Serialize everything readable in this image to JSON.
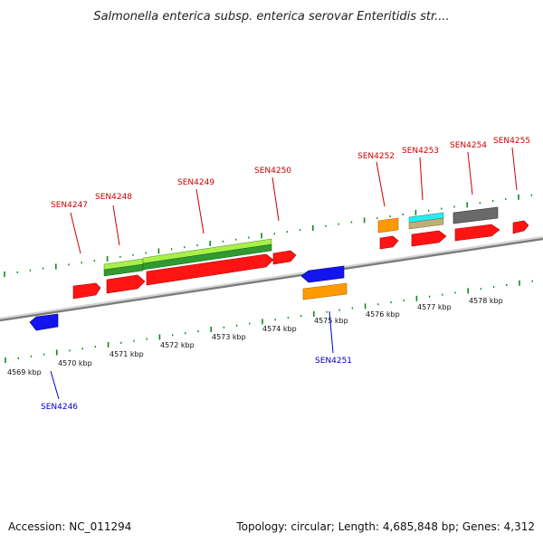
{
  "title": "Salmonella enterica subsp. enterica serovar Enteritidis str....",
  "footer": {
    "accession": "Accession: NC_011294",
    "summary": "Topology: circular; Length: 4,685,848 bp; Genes: 4,312"
  },
  "colors": {
    "backbone": "#8c8c8c",
    "ticks": "#0f8a1e",
    "top_strand_label": "#cc0000",
    "bottom_strand_label": "#0000cc",
    "cds_red": "#ff1414",
    "cds_blue": "#1414ee",
    "orange": "#ff9900",
    "cyan": "#22eeee",
    "tan": "#bfae7a",
    "lime": "#a8f04a",
    "dark_green": "#2f9a2f",
    "gray": "#6a6a6a"
  },
  "scale_labels": [
    {
      "text": "4569 kbp"
    },
    {
      "text": "4570 kbp"
    },
    {
      "text": "4571 kbp"
    },
    {
      "text": "4572 kbp"
    },
    {
      "text": "4573 kbp"
    },
    {
      "text": "4574 kbp"
    },
    {
      "text": "4575 kbp"
    },
    {
      "text": "4576 kbp"
    },
    {
      "text": "4577 kbp"
    },
    {
      "text": "4578 kbp"
    }
  ],
  "gene_labels": [
    {
      "text": "SEN4246",
      "strand": "bottom"
    },
    {
      "text": "SEN4247",
      "strand": "top"
    },
    {
      "text": "SEN4248",
      "strand": "top"
    },
    {
      "text": "SEN4249",
      "strand": "top"
    },
    {
      "text": "SEN4250",
      "strand": "top"
    },
    {
      "text": "SEN4251",
      "strand": "bottom"
    },
    {
      "text": "SEN4252",
      "strand": "top"
    },
    {
      "text": "SEN4253",
      "strand": "top"
    },
    {
      "text": "SEN4254",
      "strand": "top"
    },
    {
      "text": "SEN4255",
      "strand": "top"
    }
  ]
}
